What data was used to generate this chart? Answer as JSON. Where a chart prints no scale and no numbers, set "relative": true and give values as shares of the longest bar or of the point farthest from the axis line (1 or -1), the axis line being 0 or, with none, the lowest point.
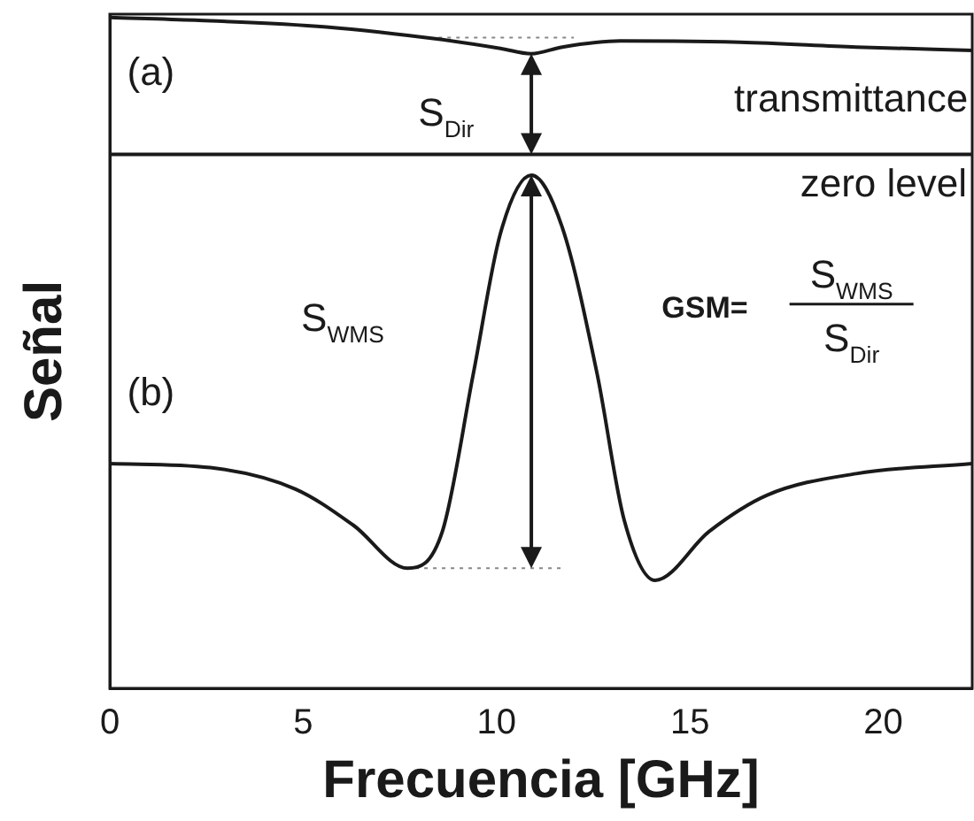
{
  "chart_data": {
    "type": "line",
    "xlabel": "Frecuencia [GHz]",
    "ylabel": "Señal",
    "relative": true,
    "tick_labels": "x",
    "grid": false,
    "legend": false,
    "marker": "none",
    "xlim": [
      0,
      22.3
    ],
    "xticks": [
      0,
      5,
      10,
      15,
      20
    ],
    "series": [
      {
        "color": "#1a1a1a",
        "x": [
          0,
          2.2,
          5.6,
          8.6,
          10.1,
          10.9,
          11.7,
          13.2,
          16.3,
          19.3,
          22.3
        ],
        "values": [
          1.0,
          0.996,
          0.986,
          0.967,
          0.954,
          0.946,
          0.956,
          0.965,
          0.963,
          0.956,
          0.951
        ]
      },
      {
        "color": "#1a1a1a",
        "x": [
          0,
          2.6,
          4.8,
          6.3,
          7.7,
          8.6,
          9.4,
          10.1,
          10.9,
          11.7,
          12.6,
          13.3,
          14.1,
          15.5,
          17.0,
          19.3,
          22.3
        ],
        "values": [
          0.335,
          0.329,
          0.297,
          0.243,
          0.179,
          0.234,
          0.469,
          0.678,
          0.765,
          0.687,
          0.469,
          0.251,
          0.161,
          0.234,
          0.288,
          0.32,
          0.335
        ]
      },
      {
        "color": "#888888",
        "line_style": "dotted",
        "x": [
          8.5,
          12.0
        ],
        "values": [
          0.97,
          0.97
        ]
      },
      {
        "color": "#888888",
        "line_style": "dotted",
        "x": [
          7.9,
          11.7
        ],
        "values": [
          0.179,
          0.179
        ]
      }
    ],
    "ref_lines": [
      {
        "axis": "y",
        "value": 0.796,
        "label": "zero level",
        "color": "#1a1a1a"
      }
    ],
    "annotations": [
      "(a)",
      "S$_{Dir}$",
      "transmittance",
      "S$_{WMS}$",
      "(b)",
      "GSM=",
      "S$_{WMS}$",
      "S$_{Dir}$"
    ]
  }
}
